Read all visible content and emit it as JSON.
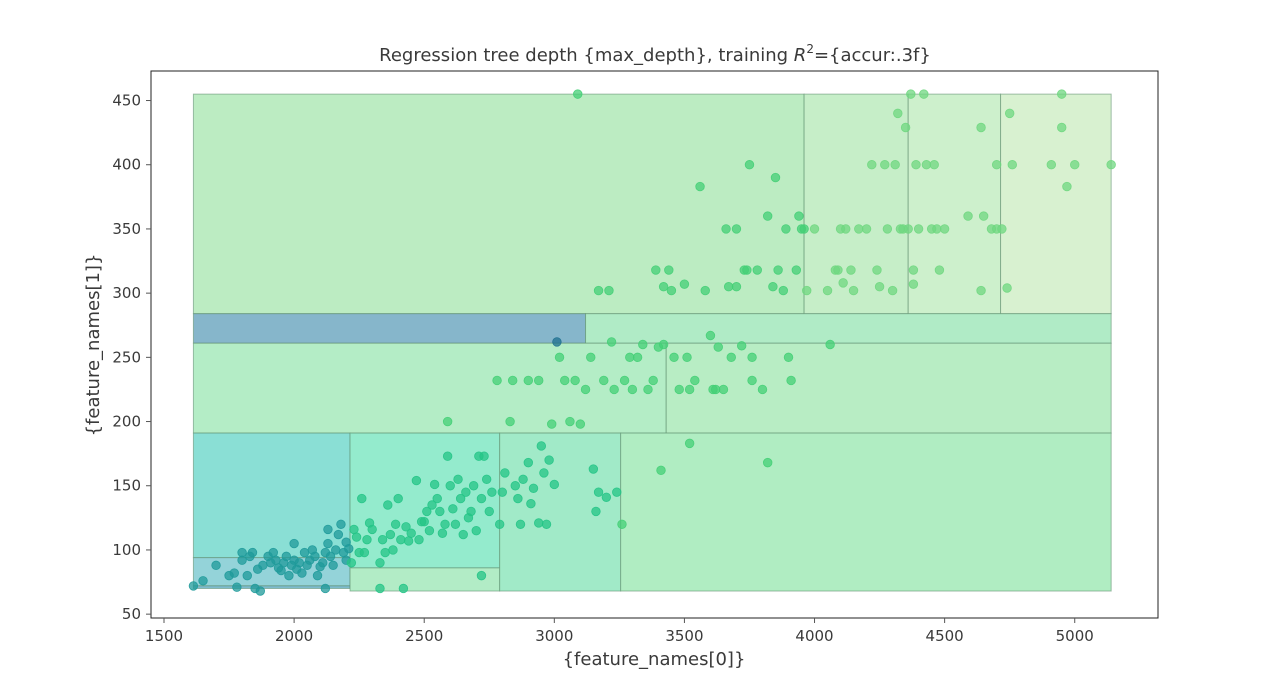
{
  "chart_data": {
    "type": "scatter",
    "title_prefix": "Regression tree depth {max_depth}, training ",
    "title_r": "R",
    "title_sup": "2",
    "title_suffix": "={accur:.3f}",
    "xlabel": "{feature_names[0]}",
    "ylabel": "{feature_names[1]}",
    "xlim": [
      1450,
      5320
    ],
    "ylim": [
      47,
      473
    ],
    "xticks": [
      1500,
      2000,
      2500,
      3000,
      3500,
      4000,
      4500,
      5000
    ],
    "yticks": [
      50,
      100,
      150,
      200,
      250,
      300,
      350,
      400,
      450
    ],
    "grid": false,
    "legend": "none",
    "colors": {
      "frame": "#222222",
      "region_edge": "#5a8a6a",
      "tick": "#555555"
    },
    "regions": [
      {
        "x0": 1613,
        "x1": 3960,
        "y0": 284,
        "y1": 455,
        "color": "#bcecc2"
      },
      {
        "x0": 3960,
        "x1": 4360,
        "y0": 284,
        "y1": 455,
        "color": "#c6eec8"
      },
      {
        "x0": 4360,
        "x1": 4715,
        "y0": 284,
        "y1": 455,
        "color": "#cdf0cc"
      },
      {
        "x0": 4715,
        "x1": 5140,
        "y0": 284,
        "y1": 455,
        "color": "#d8f1d0"
      },
      {
        "x0": 1613,
        "x1": 3120,
        "y0": 261,
        "y1": 284,
        "color": "#86b6cb"
      },
      {
        "x0": 3120,
        "x1": 5140,
        "y0": 261,
        "y1": 284,
        "color": "#b0ebc6"
      },
      {
        "x0": 1613,
        "x1": 3430,
        "y0": 191,
        "y1": 261,
        "color": "#b4edc6"
      },
      {
        "x0": 3430,
        "x1": 5140,
        "y0": 191,
        "y1": 261,
        "color": "#b8edc4"
      },
      {
        "x0": 1613,
        "x1": 2215,
        "y0": 94,
        "y1": 191,
        "color": "#8adfd5"
      },
      {
        "x0": 1613,
        "x1": 2215,
        "y0": 72,
        "y1": 94,
        "color": "#94d3d9"
      },
      {
        "x0": 1613,
        "x1": 2215,
        "y0": 70,
        "y1": 72,
        "color": "#7fbdd1"
      },
      {
        "x0": 2215,
        "x1": 2790,
        "y0": 86,
        "y1": 191,
        "color": "#94ebcd"
      },
      {
        "x0": 2215,
        "x1": 2790,
        "y0": 68,
        "y1": 86,
        "color": "#b2ecc6"
      },
      {
        "x0": 2790,
        "x1": 3255,
        "y0": 68,
        "y1": 191,
        "color": "#a1eac8"
      },
      {
        "x0": 3255,
        "x1": 5140,
        "y0": 68,
        "y1": 191,
        "color": "#b0edc2"
      }
    ],
    "points": [
      [
        1613,
        72
      ],
      [
        1650,
        76
      ],
      [
        1700,
        88
      ],
      [
        1750,
        80
      ],
      [
        1770,
        82
      ],
      [
        1780,
        71
      ],
      [
        1800,
        92
      ],
      [
        1800,
        98
      ],
      [
        1820,
        80
      ],
      [
        1830,
        95
      ],
      [
        1840,
        98
      ],
      [
        1850,
        70
      ],
      [
        1860,
        85
      ],
      [
        1870,
        68
      ],
      [
        1880,
        88
      ],
      [
        1900,
        95
      ],
      [
        1910,
        90
      ],
      [
        1920,
        98
      ],
      [
        1930,
        92
      ],
      [
        1940,
        86
      ],
      [
        1950,
        84
      ],
      [
        1960,
        90
      ],
      [
        1970,
        95
      ],
      [
        1980,
        80
      ],
      [
        1990,
        88
      ],
      [
        2000,
        92
      ],
      [
        2000,
        105
      ],
      [
        2010,
        85
      ],
      [
        2020,
        90
      ],
      [
        2030,
        82
      ],
      [
        2040,
        98
      ],
      [
        2050,
        88
      ],
      [
        2060,
        92
      ],
      [
        2070,
        100
      ],
      [
        2080,
        95
      ],
      [
        2090,
        80
      ],
      [
        2100,
        87
      ],
      [
        2110,
        90
      ],
      [
        2120,
        98
      ],
      [
        2130,
        105
      ],
      [
        2130,
        116
      ],
      [
        2140,
        95
      ],
      [
        2150,
        88
      ],
      [
        2160,
        100
      ],
      [
        2170,
        112
      ],
      [
        2180,
        120
      ],
      [
        2190,
        98
      ],
      [
        2200,
        106
      ],
      [
        2200,
        92
      ],
      [
        2210,
        101
      ],
      [
        2120,
        70
      ],
      [
        2220,
        90
      ],
      [
        2230,
        116
      ],
      [
        2240,
        110
      ],
      [
        2250,
        98
      ],
      [
        2260,
        140
      ],
      [
        2270,
        98
      ],
      [
        2280,
        108
      ],
      [
        2290,
        121
      ],
      [
        2300,
        116
      ],
      [
        2330,
        70
      ],
      [
        2330,
        90
      ],
      [
        2340,
        108
      ],
      [
        2350,
        98
      ],
      [
        2360,
        135
      ],
      [
        2370,
        112
      ],
      [
        2380,
        100
      ],
      [
        2390,
        120
      ],
      [
        2400,
        140
      ],
      [
        2410,
        108
      ],
      [
        2420,
        70
      ],
      [
        2430,
        118
      ],
      [
        2440,
        107
      ],
      [
        2450,
        113
      ],
      [
        2470,
        154
      ],
      [
        2480,
        108
      ],
      [
        2490,
        122
      ],
      [
        2500,
        122
      ],
      [
        2510,
        130
      ],
      [
        2520,
        115
      ],
      [
        2530,
        135
      ],
      [
        2540,
        151
      ],
      [
        2550,
        140
      ],
      [
        2560,
        130
      ],
      [
        2570,
        113
      ],
      [
        2580,
        120
      ],
      [
        2590,
        173
      ],
      [
        2590,
        200
      ],
      [
        2600,
        150
      ],
      [
        2610,
        132
      ],
      [
        2620,
        120
      ],
      [
        2630,
        155
      ],
      [
        2640,
        140
      ],
      [
        2650,
        112
      ],
      [
        2660,
        145
      ],
      [
        2670,
        125
      ],
      [
        2680,
        130
      ],
      [
        2690,
        150
      ],
      [
        2700,
        115
      ],
      [
        2710,
        173
      ],
      [
        2720,
        140
      ],
      [
        2720,
        80
      ],
      [
        2730,
        173
      ],
      [
        2740,
        155
      ],
      [
        2750,
        130
      ],
      [
        2760,
        145
      ],
      [
        2780,
        232
      ],
      [
        2790,
        120
      ],
      [
        2800,
        145
      ],
      [
        2810,
        160
      ],
      [
        2830,
        200
      ],
      [
        2840,
        232
      ],
      [
        2850,
        150
      ],
      [
        2860,
        140
      ],
      [
        2870,
        120
      ],
      [
        2880,
        155
      ],
      [
        2900,
        232
      ],
      [
        2900,
        168
      ],
      [
        2910,
        136
      ],
      [
        2920,
        148
      ],
      [
        2940,
        121
      ],
      [
        2940,
        232
      ],
      [
        2950,
        181
      ],
      [
        2960,
        160
      ],
      [
        2970,
        120
      ],
      [
        2980,
        170
      ],
      [
        2990,
        198
      ],
      [
        3000,
        151
      ],
      [
        3010,
        262
      ],
      [
        3020,
        250
      ],
      [
        3040,
        232
      ],
      [
        3060,
        200
      ],
      [
        3080,
        232
      ],
      [
        3090,
        455
      ],
      [
        3100,
        198
      ],
      [
        3120,
        225
      ],
      [
        3140,
        250
      ],
      [
        3150,
        163
      ],
      [
        3160,
        130
      ],
      [
        3170,
        145
      ],
      [
        3170,
        302
      ],
      [
        3190,
        232
      ],
      [
        3200,
        141
      ],
      [
        3210,
        302
      ],
      [
        3220,
        262
      ],
      [
        3230,
        225
      ],
      [
        3240,
        145
      ],
      [
        3260,
        120
      ],
      [
        3270,
        232
      ],
      [
        3290,
        250
      ],
      [
        3300,
        225
      ],
      [
        3320,
        250
      ],
      [
        3340,
        260
      ],
      [
        3360,
        225
      ],
      [
        3380,
        232
      ],
      [
        3390,
        318
      ],
      [
        3400,
        258
      ],
      [
        3410,
        162
      ],
      [
        3420,
        260
      ],
      [
        3420,
        305
      ],
      [
        3440,
        318
      ],
      [
        3450,
        302
      ],
      [
        3460,
        250
      ],
      [
        3480,
        225
      ],
      [
        3500,
        307
      ],
      [
        3510,
        250
      ],
      [
        3520,
        183
      ],
      [
        3520,
        225
      ],
      [
        3540,
        232
      ],
      [
        3560,
        383
      ],
      [
        3580,
        302
      ],
      [
        3600,
        267
      ],
      [
        3610,
        225
      ],
      [
        3620,
        225
      ],
      [
        3630,
        258
      ],
      [
        3650,
        225
      ],
      [
        3660,
        350
      ],
      [
        3670,
        305
      ],
      [
        3680,
        250
      ],
      [
        3700,
        350
      ],
      [
        3720,
        259
      ],
      [
        3730,
        318
      ],
      [
        3740,
        318
      ],
      [
        3750,
        400
      ],
      [
        3760,
        250
      ],
      [
        3760,
        232
      ],
      [
        3780,
        318
      ],
      [
        3800,
        225
      ],
      [
        3820,
        360
      ],
      [
        3820,
        168
      ],
      [
        3840,
        305
      ],
      [
        3850,
        390
      ],
      [
        3860,
        318
      ],
      [
        3880,
        302
      ],
      [
        3890,
        350
      ],
      [
        3900,
        250
      ],
      [
        3910,
        232
      ],
      [
        3930,
        318
      ],
      [
        3940,
        360
      ],
      [
        3950,
        350
      ],
      [
        3970,
        302
      ],
      [
        4000,
        350
      ],
      [
        4050,
        302
      ],
      [
        4060,
        260
      ],
      [
        4080,
        318
      ],
      [
        4100,
        350
      ],
      [
        4110,
        308
      ],
      [
        4120,
        350
      ],
      [
        4140,
        318
      ],
      [
        4150,
        302
      ],
      [
        4170,
        350
      ],
      [
        4200,
        350
      ],
      [
        4220,
        400
      ],
      [
        4240,
        318
      ],
      [
        4250,
        305
      ],
      [
        4270,
        400
      ],
      [
        4280,
        350
      ],
      [
        4300,
        302
      ],
      [
        4310,
        400
      ],
      [
        4320,
        440
      ],
      [
        4340,
        350
      ],
      [
        4350,
        429
      ],
      [
        4360,
        350
      ],
      [
        4370,
        455
      ],
      [
        4380,
        318
      ],
      [
        4390,
        400
      ],
      [
        4400,
        350
      ],
      [
        4420,
        455
      ],
      [
        4430,
        400
      ],
      [
        4450,
        350
      ],
      [
        4460,
        400
      ],
      [
        4470,
        350
      ],
      [
        4480,
        318
      ],
      [
        4500,
        350
      ],
      [
        4590,
        360
      ],
      [
        4640,
        302
      ],
      [
        4650,
        360
      ],
      [
        4680,
        350
      ],
      [
        4700,
        400
      ],
      [
        4720,
        350
      ],
      [
        4740,
        304
      ],
      [
        4750,
        440
      ],
      [
        4760,
        400
      ],
      [
        4910,
        400
      ],
      [
        4950,
        455
      ],
      [
        4950,
        429
      ],
      [
        4970,
        383
      ],
      [
        5000,
        400
      ],
      [
        5140,
        400
      ],
      [
        4700,
        350
      ],
      [
        4380,
        307
      ],
      [
        4090,
        318
      ],
      [
        3960,
        350
      ],
      [
        3700,
        305
      ],
      [
        4640,
        429
      ],
      [
        4330,
        350
      ]
    ]
  }
}
